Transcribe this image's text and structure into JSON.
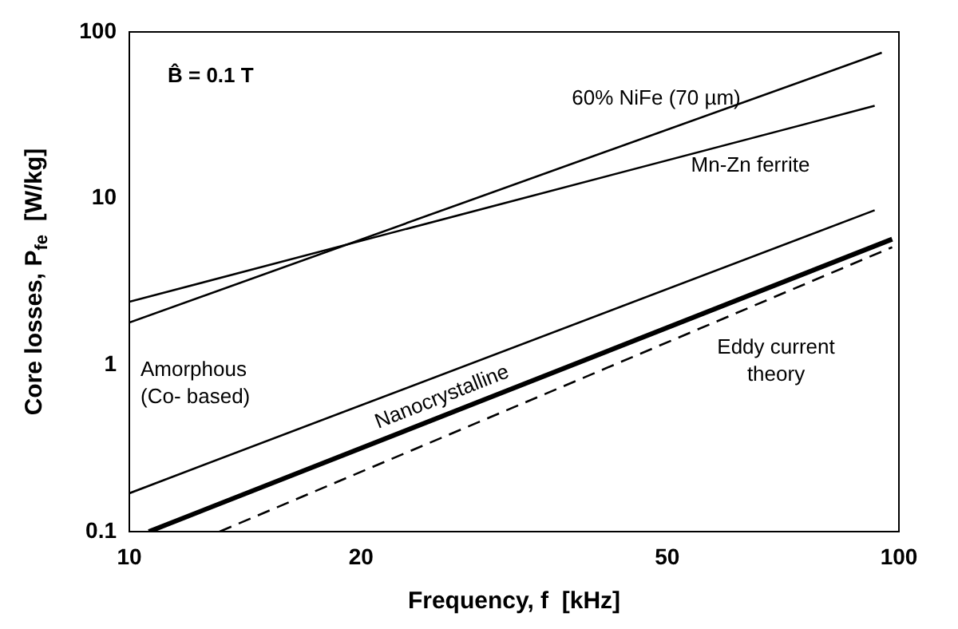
{
  "chart_data": {
    "type": "line",
    "xlabel": "Frequency, f  [kHz]",
    "ylabel": "Core losses, P$_{fe}$  [W/kg]",
    "log": "xy",
    "xlim": [
      10,
      100
    ],
    "ylim": [
      0.1,
      100
    ],
    "xticks": [
      10,
      20,
      50,
      100
    ],
    "yticks": [
      0.1,
      1,
      10,
      100
    ],
    "grid": false,
    "legend": false,
    "marker": "none",
    "annotations": [
      "B̂ = 0.1 T"
    ],
    "series": [
      {
        "name": "60% NiFe (70 µm)",
        "color": "#000000",
        "x": [
          10,
          95
        ],
        "values": [
          1.8,
          75
        ]
      },
      {
        "name": "Mn-Zn ferrite",
        "color": "#000000",
        "x": [
          10,
          93
        ],
        "values": [
          2.4,
          36
        ]
      },
      {
        "name": "Amorphous (Co- based)",
        "color": "#000000",
        "x": [
          10,
          93
        ],
        "values": [
          0.17,
          8.5
        ]
      },
      {
        "name": "Nanocrystalline",
        "color": "#000000",
        "x": [
          10.6,
          98
        ],
        "values": [
          0.1,
          5.7
        ]
      },
      {
        "name": "Eddy current theory",
        "color": "#000000",
        "line_style": "dashed",
        "x": [
          13.1,
          98
        ],
        "values": [
          0.1,
          5.1
        ]
      }
    ]
  }
}
